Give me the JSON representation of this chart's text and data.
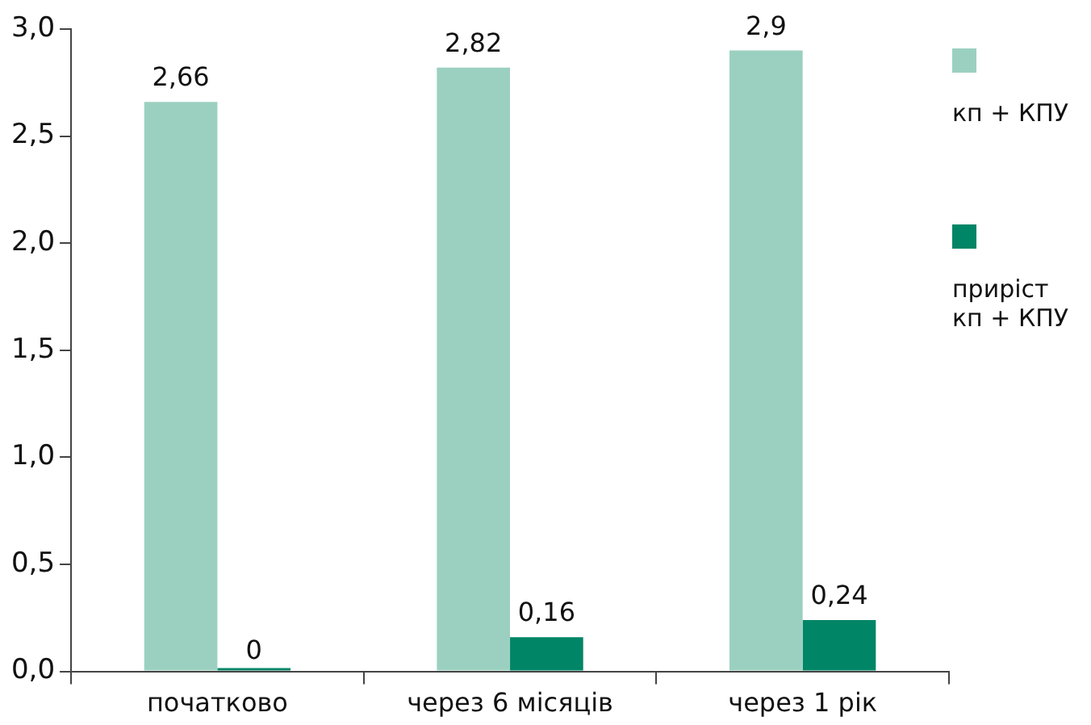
{
  "chart_data": {
    "type": "bar",
    "categories": [
      "початково",
      "через 6 місяців",
      "через 1 рік"
    ],
    "series": [
      {
        "name": "кп + КПУ",
        "color": "#9bd0c0",
        "values": [
          2.66,
          2.82,
          2.9
        ],
        "value_labels": [
          "2,66",
          "2,82",
          "2,9"
        ]
      },
      {
        "name": "приріст кп + КПУ",
        "color": "#008566",
        "values": [
          0,
          0.16,
          0.24
        ],
        "value_labels": [
          "0",
          "0,16",
          "0,24"
        ]
      }
    ],
    "ylim": [
      0,
      3
    ],
    "yticks": [
      {
        "value": 0,
        "label": "0,0"
      },
      {
        "value": 0.5,
        "label": "0,5"
      },
      {
        "value": 1,
        "label": "1,0"
      },
      {
        "value": 1.5,
        "label": "1,5"
      },
      {
        "value": 2,
        "label": "2,0"
      },
      {
        "value": 2.5,
        "label": "2,5"
      },
      {
        "value": 3,
        "label": "3,0"
      }
    ],
    "legend": "right",
    "grid": false
  }
}
